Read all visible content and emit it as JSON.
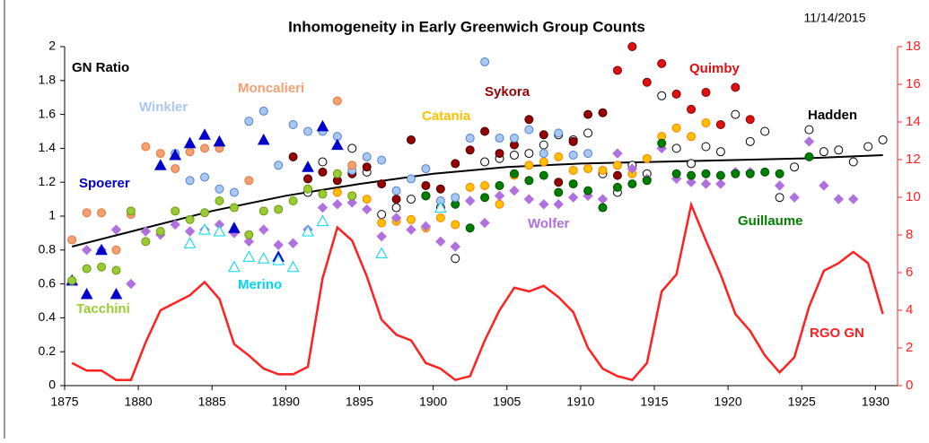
{
  "chart_data": {
    "type": "scatter",
    "title": "Inhomogeneity in Early Greenwich Group Counts",
    "subtitle": "11/14/2015",
    "xlim": [
      1875,
      1931.5
    ],
    "xticks": [
      1875,
      1880,
      1885,
      1890,
      1895,
      1900,
      1905,
      1910,
      1915,
      1920,
      1925,
      1930
    ],
    "ylim": [
      0,
      2
    ],
    "yticks": [
      0,
      0.2,
      0.4,
      0.6,
      0.8,
      1,
      1.2,
      1.4,
      1.6,
      1.8,
      2
    ],
    "y2lim": [
      0,
      18
    ],
    "y2ticks": [
      0,
      2,
      4,
      6,
      8,
      10,
      12,
      14,
      16,
      18
    ],
    "y2color": "#ff2020",
    "grid": false,
    "series": [
      {
        "name": "GN Ratio",
        "type": "line",
        "color": "#000000",
        "x": [
          1875.5,
          1880,
          1885,
          1890,
          1895,
          1900,
          1905,
          1910,
          1915,
          1920,
          1925,
          1930.5
        ],
        "values": [
          0.82,
          0.92,
          1.03,
          1.12,
          1.19,
          1.25,
          1.29,
          1.31,
          1.32,
          1.33,
          1.34,
          1.36
        ]
      },
      {
        "name": "RGO GN",
        "type": "line",
        "axis": "y2",
        "color": "#ff2020",
        "x": [
          1875.5,
          1876.5,
          1877.5,
          1878.5,
          1879.5,
          1880.5,
          1881.5,
          1882.5,
          1883.5,
          1884.5,
          1885.5,
          1886.5,
          1887.5,
          1888.5,
          1889.5,
          1890.5,
          1891.5,
          1892.5,
          1893.5,
          1894.5,
          1895.5,
          1896.5,
          1897.5,
          1898.5,
          1899.5,
          1900.5,
          1901.5,
          1902.5,
          1903.5,
          1904.5,
          1905.5,
          1906.5,
          1907.5,
          1908.5,
          1909.5,
          1910.5,
          1911.5,
          1912.5,
          1913.5,
          1914.5,
          1915.5,
          1916.5,
          1917.5,
          1918.5,
          1919.5,
          1920.5,
          1921.5,
          1922.5,
          1923.5,
          1924.5,
          1925.5,
          1926.5,
          1927.5,
          1928.5,
          1929.5,
          1930.5
        ],
        "values": [
          1.2,
          0.8,
          0.8,
          0.3,
          0.3,
          2.3,
          4.0,
          4.4,
          4.8,
          5.5,
          4.6,
          2.2,
          1.6,
          0.9,
          0.6,
          0.6,
          1.0,
          5.7,
          8.4,
          7.7,
          5.8,
          3.5,
          2.7,
          2.4,
          1.2,
          0.9,
          0.3,
          0.5,
          2.4,
          4.0,
          5.2,
          5.0,
          5.3,
          4.7,
          3.9,
          2.0,
          0.9,
          0.5,
          0.3,
          1.2,
          5.0,
          5.9,
          9.6,
          7.7,
          5.9,
          3.8,
          2.9,
          1.6,
          0.7,
          1.5,
          4.2,
          6.1,
          6.5,
          7.1,
          6.5,
          3.8
        ]
      },
      {
        "name": "Hadden",
        "marker": "circle",
        "open": true,
        "color": "#000000",
        "x": [
          1891.5,
          1892.5,
          1894.5,
          1895.5,
          1896.5,
          1897.5,
          1898.5,
          1899.5,
          1900.5,
          1901.5,
          1903.5,
          1904.5,
          1905.5,
          1906.5,
          1907.5,
          1908.5,
          1909.5,
          1910.5,
          1911.5,
          1912.5,
          1913.5,
          1914.5,
          1915.5,
          1916.5,
          1917.5,
          1918.5,
          1919.5,
          1920.5,
          1921.5,
          1922.5,
          1923.5,
          1924.5,
          1925.5,
          1926.5,
          1927.5,
          1928.5,
          1929.5,
          1930.5
        ],
        "values": [
          1.14,
          1.32,
          1.4,
          1.26,
          1.01,
          1.05,
          1.1,
          1.12,
          1.05,
          0.75,
          1.32,
          1.34,
          1.36,
          1.37,
          1.42,
          1.48,
          1.45,
          1.49,
          1.25,
          1.14,
          1.3,
          1.25,
          1.71,
          1.4,
          1.31,
          1.41,
          1.38,
          1.6,
          1.44,
          1.5,
          1.11,
          1.29,
          1.51,
          1.38,
          1.39,
          1.32,
          1.41,
          1.45
        ]
      },
      {
        "name": "Quimby",
        "marker": "circle",
        "color": "#e01010",
        "edgecolor": "#800000",
        "x": [
          1912.5,
          1913.5,
          1914.5,
          1915.5,
          1916.5,
          1917.5,
          1918.5,
          1919.5,
          1920.5,
          1921.5
        ],
        "values": [
          1.86,
          2.0,
          1.79,
          1.9,
          1.72,
          1.63,
          1.73,
          1.54,
          1.76,
          1.57
        ]
      },
      {
        "name": "Sykora",
        "marker": "circle",
        "color": "#990000",
        "edgecolor": "#400000",
        "x": [
          1890.5,
          1891.5,
          1892.5,
          1893.5,
          1894.5,
          1895.5,
          1896.5,
          1897.5,
          1898.5,
          1899.5,
          1900.5,
          1901.5,
          1902.5,
          1903.5,
          1904.5,
          1905.5,
          1906.5,
          1907.5,
          1908.5,
          1909.5,
          1910.5,
          1911.5,
          1912.5
        ],
        "values": [
          1.35,
          1.22,
          1.26,
          1.21,
          1.25,
          1.29,
          1.19,
          1.1,
          1.45,
          1.18,
          1.16,
          1.31,
          1.39,
          1.5,
          1.37,
          1.42,
          1.57,
          1.48,
          1.2,
          1.44,
          1.6,
          1.61,
          1.24
        ]
      },
      {
        "name": "Catania",
        "marker": "circle",
        "color": "#ffc000",
        "edgecolor": "#ff8000",
        "x": [
          1893.5,
          1894.5,
          1895.5,
          1896.5,
          1897.5,
          1898.5,
          1899.5,
          1900.5,
          1901.5,
          1902.5,
          1903.5,
          1904.5,
          1905.5,
          1906.5,
          1907.5,
          1908.5,
          1909.5,
          1910.5,
          1911.5,
          1912.5,
          1913.5,
          1914.5,
          1915.5,
          1916.5,
          1917.5,
          1918.5
        ],
        "values": [
          1.14,
          1.12,
          1.1,
          0.96,
          0.97,
          0.98,
          0.93,
          0.99,
          0.95,
          1.17,
          1.18,
          1.07,
          1.24,
          1.3,
          1.32,
          1.35,
          1.27,
          1.28,
          1.27,
          1.3,
          1.25,
          1.34,
          1.47,
          1.52,
          1.47,
          1.55
        ]
      },
      {
        "name": "Wolfer",
        "marker": "diamond",
        "color": "#b070e0",
        "x": [
          1876.5,
          1877.5,
          1878.5,
          1879.5,
          1880.5,
          1881.5,
          1882.5,
          1883.5,
          1884.5,
          1885.5,
          1886.5,
          1887.5,
          1888.5,
          1889.5,
          1890.5,
          1891.5,
          1892.5,
          1893.5,
          1894.5,
          1895.5,
          1896.5,
          1897.5,
          1898.5,
          1899.5,
          1900.5,
          1901.5,
          1902.5,
          1903.5,
          1904.5,
          1905.5,
          1906.5,
          1907.5,
          1908.5,
          1909.5,
          1910.5,
          1911.5,
          1912.5,
          1913.5,
          1914.5,
          1915.5,
          1916.5,
          1917.5,
          1918.5,
          1919.5,
          1920.5,
          1921.5,
          1923.5,
          1924.5,
          1925.5,
          1926.5,
          1927.5,
          1928.5
        ],
        "values": [
          0.8,
          0.8,
          0.92,
          0.6,
          0.91,
          0.89,
          0.95,
          0.91,
          0.92,
          0.95,
          0.9,
          0.85,
          0.92,
          0.83,
          0.84,
          0.92,
          1.05,
          1.07,
          1.08,
          1.04,
          0.88,
          0.99,
          0.92,
          0.94,
          0.85,
          0.82,
          1.09,
          0.96,
          1.12,
          1.15,
          1.1,
          1.07,
          1.07,
          1.11,
          1.12,
          1.1,
          1.37,
          1.28,
          1.22,
          1.4,
          1.22,
          1.2,
          1.19,
          1.19,
          1.26,
          1.26,
          1.18,
          1.11,
          1.44,
          1.18,
          1.1,
          1.1
        ]
      },
      {
        "name": "Guillaume",
        "marker": "circle",
        "color": "#008000",
        "edgecolor": "#004d00",
        "x": [
          1899.5,
          1901.5,
          1902.5,
          1903.5,
          1904.5,
          1905.5,
          1906.5,
          1907.5,
          1908.5,
          1909.5,
          1910.5,
          1911.5,
          1912.5,
          1913.5,
          1914.5,
          1915.5,
          1916.5,
          1917.5,
          1918.5,
          1919.5,
          1920.5,
          1921.5,
          1922.5,
          1923.5,
          1925.5
        ],
        "values": [
          1.12,
          1.07,
          0.93,
          1.11,
          1.18,
          1.25,
          1.21,
          1.24,
          1.14,
          1.19,
          1.15,
          1.05,
          1.17,
          1.19,
          1.21,
          1.43,
          1.25,
          1.24,
          1.25,
          1.24,
          1.25,
          1.25,
          1.26,
          1.25,
          1.35
        ]
      },
      {
        "name": "Winkler",
        "marker": "circle",
        "color": "#a8c8f0",
        "edgecolor": "#5080d8",
        "x": [
          1882.5,
          1883.5,
          1884.5,
          1885.5,
          1886.5,
          1887.5,
          1888.5,
          1889.5,
          1890.5,
          1891.5,
          1892.5,
          1893.5,
          1894.5,
          1895.5,
          1896.5,
          1897.5,
          1898.5,
          1899.5,
          1900.5,
          1901.5,
          1902.5,
          1903.5,
          1904.5,
          1905.5,
          1906.5,
          1907.5,
          1908.5,
          1909.5,
          1910.5
        ],
        "values": [
          1.37,
          1.21,
          1.23,
          1.16,
          1.14,
          1.56,
          1.62,
          1.3,
          1.54,
          1.5,
          1.5,
          1.47,
          1.27,
          1.35,
          1.33,
          1.15,
          1.22,
          1.28,
          1.09,
          1.11,
          1.46,
          1.91,
          1.46,
          1.46,
          1.51,
          1.37,
          1.49,
          1.36,
          1.37
        ]
      },
      {
        "name": "Moncalieri",
        "marker": "circle",
        "color": "#f4a070",
        "edgecolor": "#e07840",
        "x": [
          1875.5,
          1876.5,
          1877.5,
          1878.5,
          1879.5,
          1880.5,
          1881.5,
          1882.5,
          1883.5,
          1884.5,
          1885.5,
          1887.5,
          1893.5,
          1894.5
        ],
        "values": [
          0.86,
          1.02,
          1.02,
          0.8,
          1.01,
          1.41,
          1.37,
          1.28,
          1.38,
          1.4,
          1.4,
          1.21,
          1.68,
          1.3
        ]
      },
      {
        "name": "Spoerer",
        "marker": "triangle",
        "color": "#0000cc",
        "x": [
          1875.5,
          1876.5,
          1877.5,
          1878.5,
          1881.5,
          1882.5,
          1883.5,
          1884.5,
          1885.5,
          1886.5,
          1888.5,
          1889.5,
          1891.5,
          1892.5,
          1893.5
        ],
        "values": [
          0.62,
          0.54,
          0.8,
          0.54,
          1.3,
          1.36,
          1.43,
          1.48,
          1.44,
          0.93,
          1.45,
          0.76,
          1.29,
          1.53,
          1.42
        ]
      },
      {
        "name": "Tacchini",
        "marker": "circle",
        "color": "#99cc33",
        "edgecolor": "#6a9a10",
        "x": [
          1875.5,
          1876.5,
          1877.5,
          1878.5,
          1879.5,
          1880.5,
          1881.5,
          1882.5,
          1883.5,
          1884.5,
          1885.5,
          1886.5,
          1887.5,
          1888.5,
          1889.5,
          1890.5,
          1891.5,
          1892.5,
          1893.5,
          1894.5
        ],
        "values": [
          0.62,
          0.69,
          0.7,
          0.68,
          1.03,
          0.85,
          0.91,
          1.03,
          0.98,
          1.02,
          1.09,
          1.05,
          0.89,
          1.03,
          1.04,
          1.09,
          1.16,
          1.13,
          1.25,
          1.12
        ]
      },
      {
        "name": "Merino",
        "marker": "triangle",
        "open": true,
        "color": "#00d8f0",
        "x": [
          1883.5,
          1884.5,
          1885.5,
          1886.5,
          1887.5,
          1888.5,
          1889.5,
          1890.5,
          1891.5,
          1892.5,
          1896.5,
          1900.5
        ],
        "values": [
          0.84,
          0.92,
          0.91,
          0.7,
          0.76,
          0.75,
          0.74,
          0.7,
          0.91,
          0.97,
          0.78,
          1.05
        ]
      }
    ]
  }
}
